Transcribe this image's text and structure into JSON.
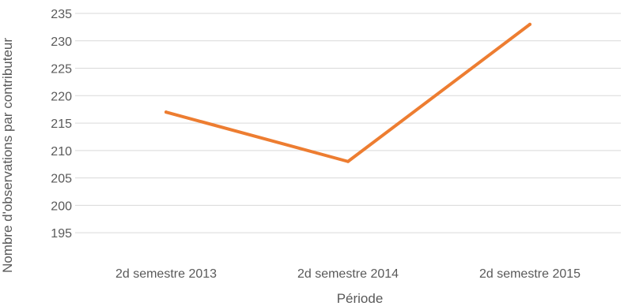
{
  "chart_data": {
    "type": "line",
    "title": "",
    "xlabel": "Période",
    "ylabel": "Nombre d'observations par contributeur",
    "categories": [
      "2d semestre 2013",
      "2d semestre 2014",
      "2d semestre 2015"
    ],
    "series": [
      {
        "values": [
          217,
          208,
          233
        ],
        "color": "#ED7D31"
      }
    ],
    "ylim": [
      192,
      235
    ],
    "yticks": [
      195,
      200,
      205,
      210,
      215,
      220,
      225,
      230,
      235
    ],
    "grid": true,
    "legend": "none"
  }
}
